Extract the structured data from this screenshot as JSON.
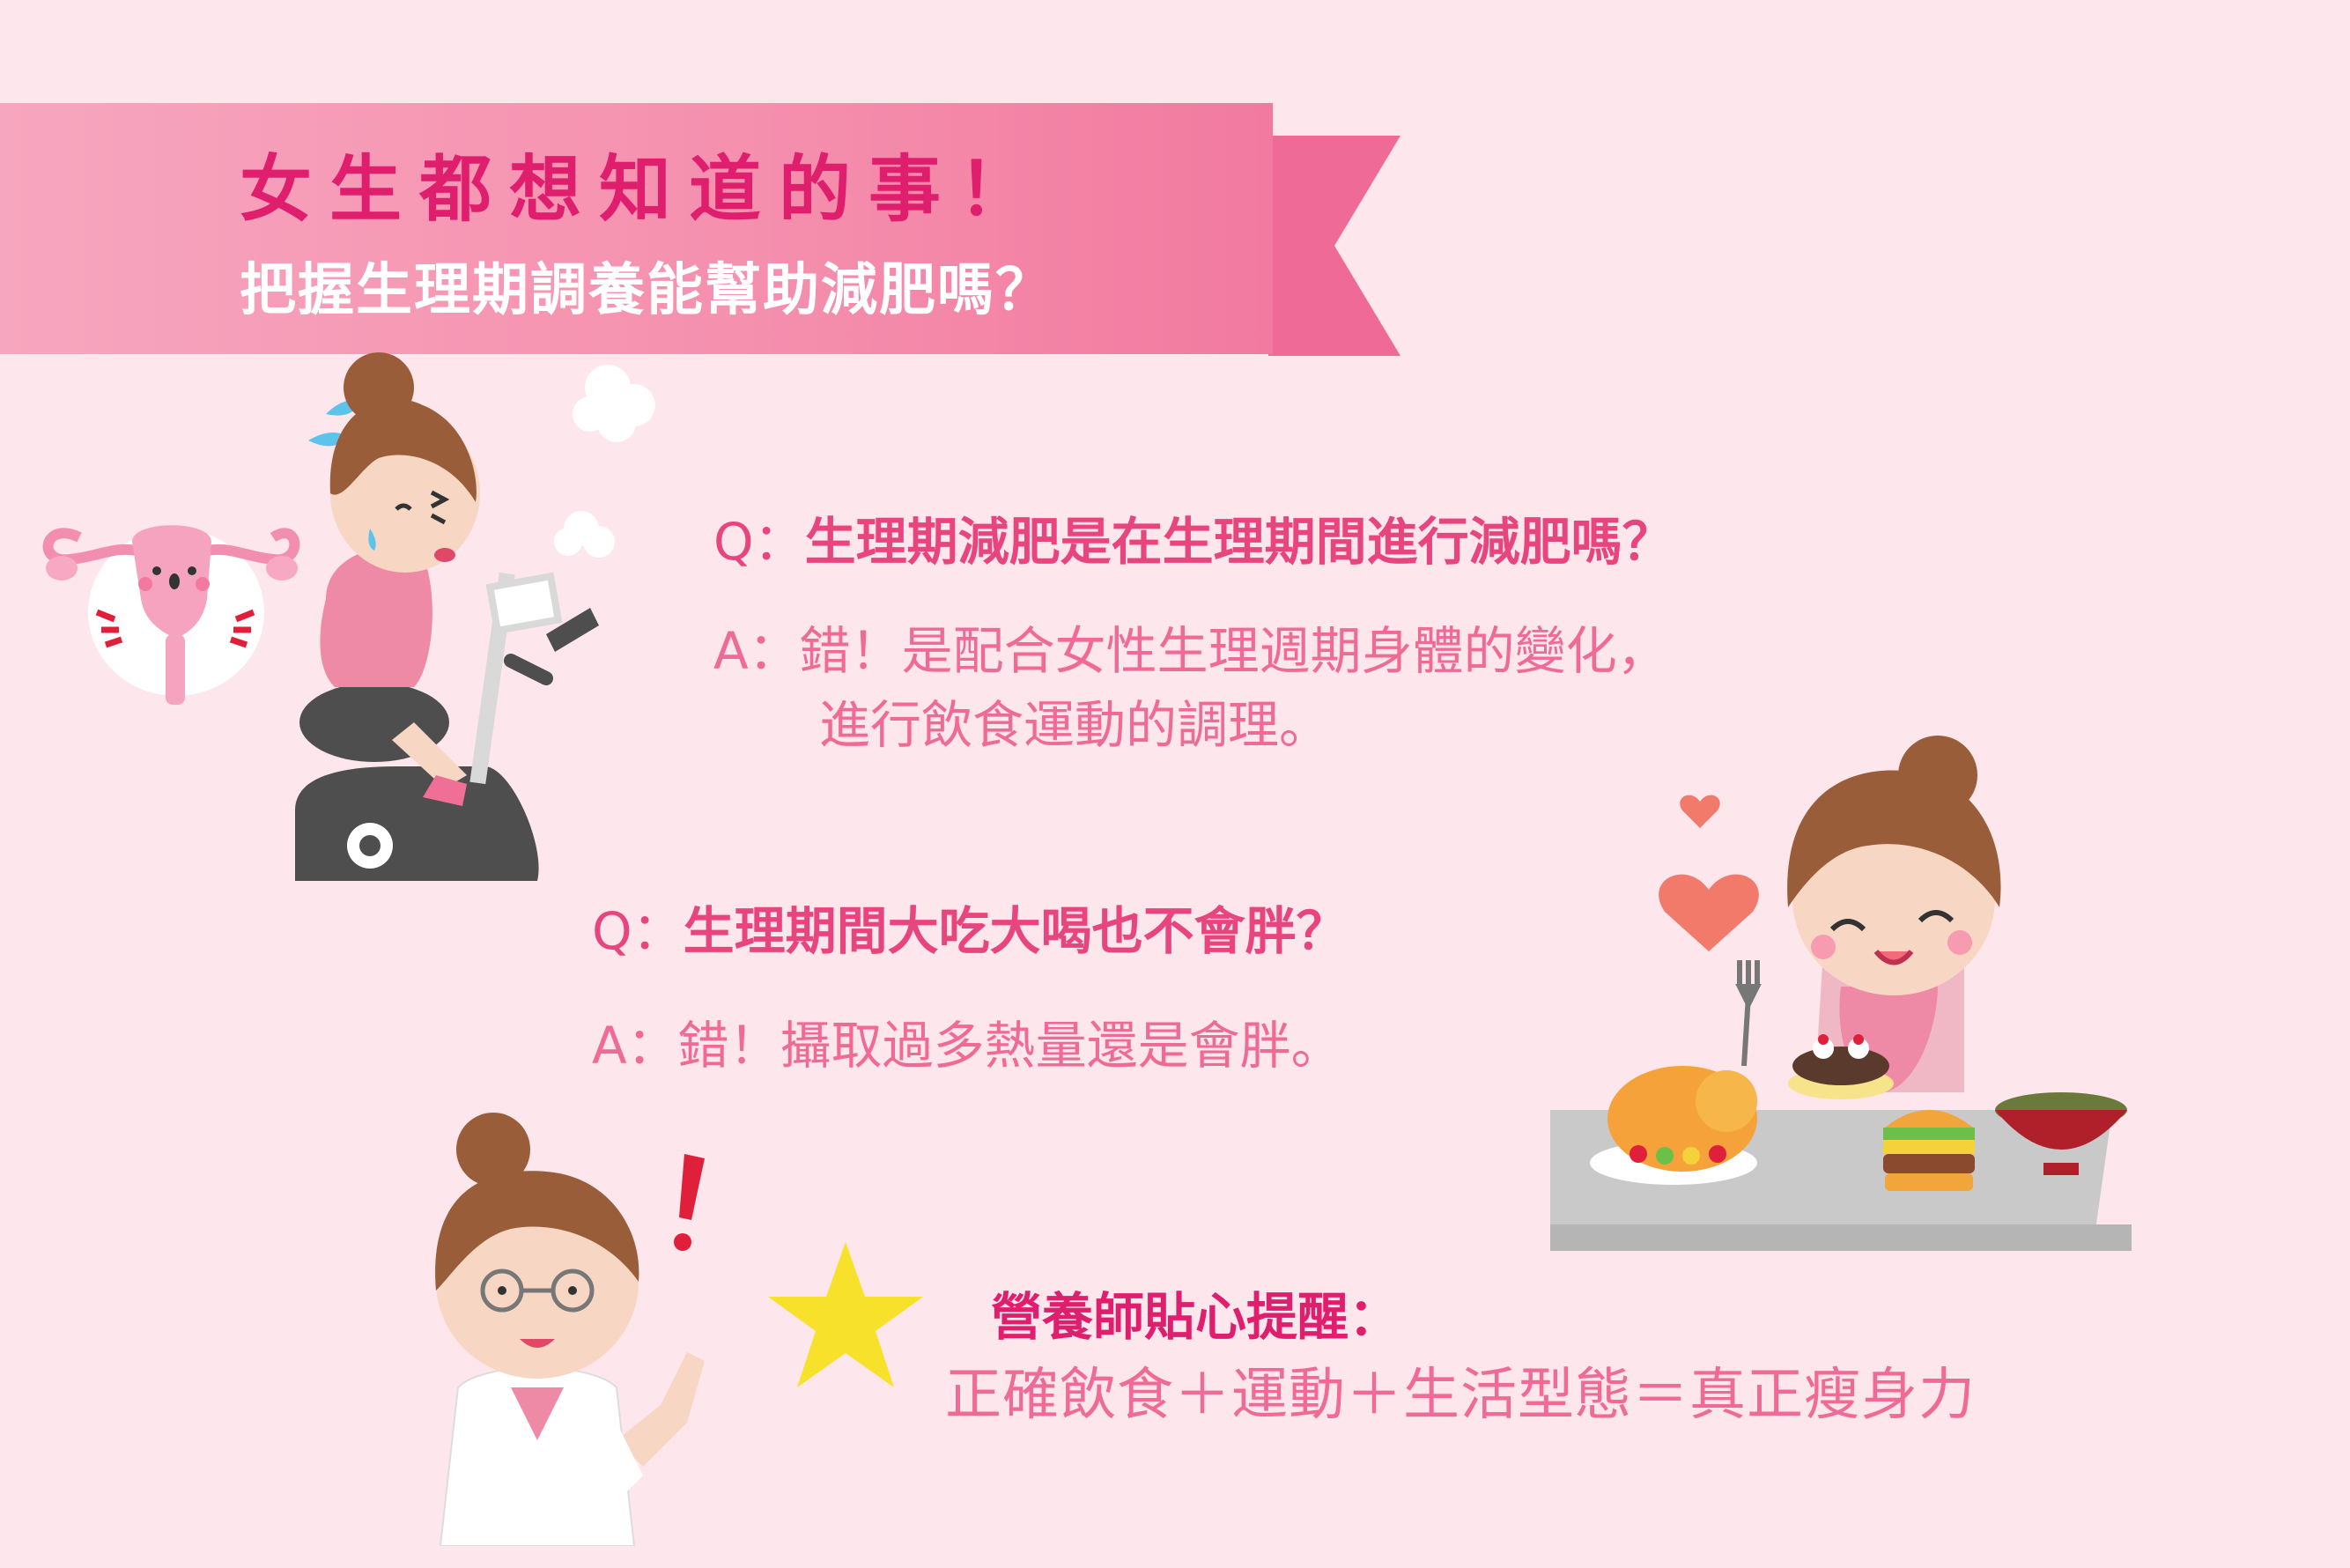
{
  "banner": {
    "title": "女生都想知道的事！",
    "subtitle": "把握生理期調養能幫助減肥嗎？"
  },
  "qa": [
    {
      "q_label": "Q：",
      "q_text": "生理期減肥是在生理期間進行減肥嗎？",
      "a_line1": "A：錯！是配合女性生理週期身體的變化，",
      "a_line2": "進行飲食運動的調理。"
    },
    {
      "q_label": "Q：",
      "q_text": "生理期間大吃大喝也不會胖？",
      "a_line1": "A：錯！攝取過多熱量還是會胖。"
    }
  ],
  "tip": {
    "title": "營養師貼心提醒：",
    "text": "正確飲食＋運動＋生活型態＝真正瘦身力"
  },
  "colors": {
    "background": "#fde6ec",
    "banner": "#f58fae",
    "title_pink": "#e01e6e",
    "question_pink": "#e8457f",
    "answer_pink": "#ef6a96"
  },
  "icons": [
    "uterus-icon",
    "sweat-drops-icon",
    "cloud-puff-icon",
    "exercise-bike-icon",
    "heart-icon",
    "fork-icon",
    "roast-chicken-icon",
    "burger-icon",
    "soup-bowl-icon",
    "cake-plate-icon",
    "exclamation-icon",
    "star-icon"
  ]
}
